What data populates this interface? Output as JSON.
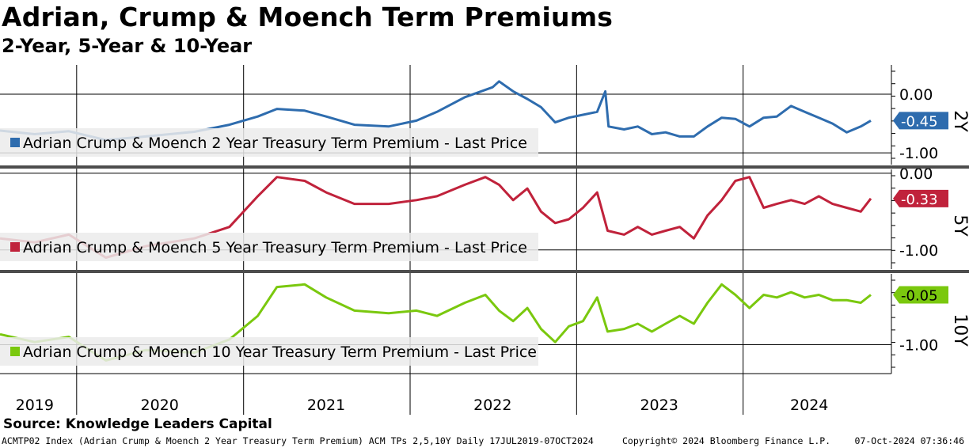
{
  "title": "Adrian, Crump & Moench Term Premiums",
  "subtitle": "2-Year, 5-Year & 10-Year",
  "source": "Source: Knowledge Leaders Capital",
  "footer": {
    "left": "ACMTP02 Index (Adrian Crump & Moench 2 Year Treasury Term Premium) ACM TPs 2,5,10Y  Daily 17JUL2019-07OCT2024",
    "middle": "Copyright© 2024 Bloomberg Finance L.P.",
    "right": "07-Oct-2024 07:36:46"
  },
  "chart_data": {
    "type": "line",
    "x_range": [
      "2019-07-17",
      "2024-10-07"
    ],
    "x_tick_labels": [
      "2019",
      "2020",
      "2021",
      "2022",
      "2023",
      "2024"
    ],
    "grid": true,
    "panels": [
      {
        "panel_label": "2Y",
        "legend": "Adrian Crump & Moench 2 Year Treasury Term Premium - Last Price",
        "color": "#2e6cae",
        "last_value": -0.45,
        "last_label": "-0.45",
        "ylim": [
          -1.2,
          0.5
        ],
        "y_ticks": [
          0.0,
          -1.0
        ],
        "y_tick_labels": [
          "0.00",
          "-1.00"
        ],
        "series": [
          {
            "x": "2019-07-17",
            "y": -0.62
          },
          {
            "x": "2019-10-01",
            "y": -0.68
          },
          {
            "x": "2019-12-15",
            "y": -0.63
          },
          {
            "x": "2020-03-05",
            "y": -0.78
          },
          {
            "x": "2020-06-01",
            "y": -0.72
          },
          {
            "x": "2020-09-15",
            "y": -0.64
          },
          {
            "x": "2020-12-01",
            "y": -0.52
          },
          {
            "x": "2021-02-01",
            "y": -0.38
          },
          {
            "x": "2021-03-15",
            "y": -0.25
          },
          {
            "x": "2021-05-15",
            "y": -0.28
          },
          {
            "x": "2021-07-01",
            "y": -0.38
          },
          {
            "x": "2021-09-01",
            "y": -0.52
          },
          {
            "x": "2021-11-15",
            "y": -0.55
          },
          {
            "x": "2022-01-15",
            "y": -0.45
          },
          {
            "x": "2022-03-01",
            "y": -0.3
          },
          {
            "x": "2022-05-01",
            "y": -0.05
          },
          {
            "x": "2022-07-01",
            "y": 0.12
          },
          {
            "x": "2022-07-15",
            "y": 0.22
          },
          {
            "x": "2022-08-15",
            "y": 0.05
          },
          {
            "x": "2022-09-15",
            "y": -0.08
          },
          {
            "x": "2022-10-15",
            "y": -0.22
          },
          {
            "x": "2022-11-15",
            "y": -0.48
          },
          {
            "x": "2022-12-15",
            "y": -0.4
          },
          {
            "x": "2023-01-15",
            "y": -0.35
          },
          {
            "x": "2023-02-15",
            "y": -0.3
          },
          {
            "x": "2023-03-05",
            "y": 0.05
          },
          {
            "x": "2023-03-12",
            "y": -0.55
          },
          {
            "x": "2023-04-15",
            "y": -0.6
          },
          {
            "x": "2023-05-15",
            "y": -0.55
          },
          {
            "x": "2023-06-15",
            "y": -0.68
          },
          {
            "x": "2023-07-15",
            "y": -0.65
          },
          {
            "x": "2023-08-15",
            "y": -0.72
          },
          {
            "x": "2023-09-15",
            "y": -0.72
          },
          {
            "x": "2023-10-15",
            "y": -0.55
          },
          {
            "x": "2023-11-15",
            "y": -0.4
          },
          {
            "x": "2023-12-15",
            "y": -0.42
          },
          {
            "x": "2024-01-15",
            "y": -0.55
          },
          {
            "x": "2024-02-15",
            "y": -0.4
          },
          {
            "x": "2024-03-15",
            "y": -0.38
          },
          {
            "x": "2024-04-15",
            "y": -0.2
          },
          {
            "x": "2024-05-15",
            "y": -0.3
          },
          {
            "x": "2024-06-15",
            "y": -0.4
          },
          {
            "x": "2024-07-15",
            "y": -0.5
          },
          {
            "x": "2024-08-15",
            "y": -0.65
          },
          {
            "x": "2024-09-15",
            "y": -0.55
          },
          {
            "x": "2024-10-07",
            "y": -0.45
          }
        ]
      },
      {
        "panel_label": "5Y",
        "legend": "Adrian Crump & Moench 5 Year Treasury Term Premium - Last Price",
        "color": "#c0223b",
        "last_value": -0.33,
        "last_label": "-0.33",
        "ylim": [
          -1.25,
          0.05
        ],
        "y_ticks": [
          0.0,
          -1.0
        ],
        "y_tick_labels": [
          "0.00",
          "-1.00"
        ],
        "series": [
          {
            "x": "2019-07-17",
            "y": -0.85
          },
          {
            "x": "2019-10-01",
            "y": -0.9
          },
          {
            "x": "2019-12-15",
            "y": -0.8
          },
          {
            "x": "2020-03-05",
            "y": -1.1
          },
          {
            "x": "2020-06-01",
            "y": -0.95
          },
          {
            "x": "2020-09-15",
            "y": -0.85
          },
          {
            "x": "2020-12-01",
            "y": -0.7
          },
          {
            "x": "2021-02-01",
            "y": -0.3
          },
          {
            "x": "2021-03-15",
            "y": -0.05
          },
          {
            "x": "2021-05-15",
            "y": -0.1
          },
          {
            "x": "2021-07-01",
            "y": -0.25
          },
          {
            "x": "2021-09-01",
            "y": -0.4
          },
          {
            "x": "2021-11-15",
            "y": -0.4
          },
          {
            "x": "2022-01-15",
            "y": -0.35
          },
          {
            "x": "2022-03-01",
            "y": -0.3
          },
          {
            "x": "2022-05-01",
            "y": -0.15
          },
          {
            "x": "2022-06-15",
            "y": -0.05
          },
          {
            "x": "2022-07-15",
            "y": -0.15
          },
          {
            "x": "2022-08-15",
            "y": -0.35
          },
          {
            "x": "2022-09-15",
            "y": -0.2
          },
          {
            "x": "2022-10-15",
            "y": -0.5
          },
          {
            "x": "2022-11-15",
            "y": -0.65
          },
          {
            "x": "2022-12-15",
            "y": -0.6
          },
          {
            "x": "2023-01-15",
            "y": -0.45
          },
          {
            "x": "2023-02-15",
            "y": -0.25
          },
          {
            "x": "2023-03-10",
            "y": -0.75
          },
          {
            "x": "2023-04-15",
            "y": -0.8
          },
          {
            "x": "2023-05-15",
            "y": -0.7
          },
          {
            "x": "2023-06-15",
            "y": -0.8
          },
          {
            "x": "2023-07-15",
            "y": -0.75
          },
          {
            "x": "2023-08-15",
            "y": -0.7
          },
          {
            "x": "2023-09-15",
            "y": -0.85
          },
          {
            "x": "2023-10-15",
            "y": -0.55
          },
          {
            "x": "2023-11-15",
            "y": -0.35
          },
          {
            "x": "2023-12-15",
            "y": -0.1
          },
          {
            "x": "2024-01-15",
            "y": -0.05
          },
          {
            "x": "2024-02-15",
            "y": -0.45
          },
          {
            "x": "2024-03-15",
            "y": -0.4
          },
          {
            "x": "2024-04-15",
            "y": -0.35
          },
          {
            "x": "2024-05-15",
            "y": -0.4
          },
          {
            "x": "2024-06-15",
            "y": -0.3
          },
          {
            "x": "2024-07-15",
            "y": -0.4
          },
          {
            "x": "2024-08-15",
            "y": -0.45
          },
          {
            "x": "2024-09-15",
            "y": -0.5
          },
          {
            "x": "2024-10-07",
            "y": -0.33
          }
        ]
      },
      {
        "panel_label": "10Y",
        "legend": "Adrian Crump & Moench 10 Year Treasury Term Premium - Last Price",
        "color": "#7ac80e",
        "last_value": -0.05,
        "last_label": "-0.05",
        "ylim": [
          -1.55,
          0.35
        ],
        "y_ticks": [
          -1.0
        ],
        "y_tick_labels": [
          "-1.00"
        ],
        "series": [
          {
            "x": "2019-07-17",
            "y": -0.8
          },
          {
            "x": "2019-10-01",
            "y": -0.95
          },
          {
            "x": "2019-12-15",
            "y": -0.85
          },
          {
            "x": "2020-03-05",
            "y": -1.3
          },
          {
            "x": "2020-06-01",
            "y": -1.1
          },
          {
            "x": "2020-09-15",
            "y": -1.15
          },
          {
            "x": "2020-12-01",
            "y": -0.9
          },
          {
            "x": "2021-02-01",
            "y": -0.45
          },
          {
            "x": "2021-03-15",
            "y": 0.1
          },
          {
            "x": "2021-05-15",
            "y": 0.15
          },
          {
            "x": "2021-07-01",
            "y": -0.1
          },
          {
            "x": "2021-09-01",
            "y": -0.35
          },
          {
            "x": "2021-11-15",
            "y": -0.4
          },
          {
            "x": "2022-01-15",
            "y": -0.35
          },
          {
            "x": "2022-03-01",
            "y": -0.45
          },
          {
            "x": "2022-05-01",
            "y": -0.2
          },
          {
            "x": "2022-06-15",
            "y": -0.05
          },
          {
            "x": "2022-07-15",
            "y": -0.35
          },
          {
            "x": "2022-08-15",
            "y": -0.55
          },
          {
            "x": "2022-09-15",
            "y": -0.3
          },
          {
            "x": "2022-10-15",
            "y": -0.7
          },
          {
            "x": "2022-11-15",
            "y": -0.95
          },
          {
            "x": "2022-12-15",
            "y": -0.65
          },
          {
            "x": "2023-01-15",
            "y": -0.55
          },
          {
            "x": "2023-02-15",
            "y": -0.1
          },
          {
            "x": "2023-03-10",
            "y": -0.75
          },
          {
            "x": "2023-04-15",
            "y": -0.7
          },
          {
            "x": "2023-05-15",
            "y": -0.6
          },
          {
            "x": "2023-06-15",
            "y": -0.75
          },
          {
            "x": "2023-07-15",
            "y": -0.6
          },
          {
            "x": "2023-08-15",
            "y": -0.45
          },
          {
            "x": "2023-09-15",
            "y": -0.6
          },
          {
            "x": "2023-10-15",
            "y": -0.2
          },
          {
            "x": "2023-11-15",
            "y": 0.15
          },
          {
            "x": "2023-12-15",
            "y": -0.05
          },
          {
            "x": "2024-01-15",
            "y": -0.3
          },
          {
            "x": "2024-02-15",
            "y": -0.05
          },
          {
            "x": "2024-03-15",
            "y": -0.1
          },
          {
            "x": "2024-04-15",
            "y": 0.0
          },
          {
            "x": "2024-05-15",
            "y": -0.1
          },
          {
            "x": "2024-06-15",
            "y": -0.05
          },
          {
            "x": "2024-07-15",
            "y": -0.15
          },
          {
            "x": "2024-08-15",
            "y": -0.15
          },
          {
            "x": "2024-09-15",
            "y": -0.2
          },
          {
            "x": "2024-10-07",
            "y": -0.05
          }
        ]
      }
    ]
  }
}
